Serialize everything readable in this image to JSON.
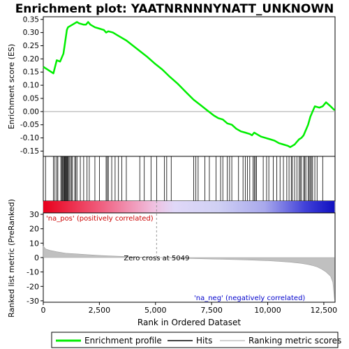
{
  "chart_data": {
    "type": "line",
    "title": "Enrichment plot: YAATNRNNNYNATT_UNKNOWN",
    "colors": {
      "es_line": "#00ee00",
      "hits": "#000000",
      "metric_fill": "#c0c0c0",
      "pos_label": "#cc0000",
      "neg_label": "#0000cc"
    },
    "top_panel": {
      "ylabel": "Enrichment score (ES)",
      "ylim": [
        -0.17,
        0.36
      ],
      "yticks": [
        "0.35",
        "0.30",
        "0.25",
        "0.20",
        "0.15",
        "0.10",
        "0.05",
        "0.00",
        "-0.05",
        "-0.10",
        "-0.15"
      ],
      "ytick_values": [
        0.35,
        0.3,
        0.25,
        0.2,
        0.15,
        0.1,
        0.05,
        0.0,
        -0.05,
        -0.1,
        -0.15
      ],
      "es_curve": {
        "x": [
          0,
          450,
          600,
          750,
          900,
          1000,
          1050,
          1100,
          1200,
          1300,
          1400,
          1500,
          1600,
          1800,
          1900,
          2000,
          2100,
          2300,
          2500,
          2700,
          2800,
          2900,
          3100,
          3300,
          3500,
          3700,
          4000,
          4300,
          4600,
          5000,
          5300,
          5600,
          6000,
          6400,
          6700,
          7000,
          7300,
          7600,
          7800,
          8000,
          8200,
          8400,
          8600,
          8800,
          9000,
          9200,
          9300,
          9400,
          9500,
          9700,
          9900,
          10100,
          10300,
          10500,
          10700,
          10900,
          11000,
          11100,
          11200,
          11300,
          11400,
          11500,
          11600,
          11700,
          11800,
          11900,
          12000,
          12100,
          12300,
          12450,
          12600,
          12800,
          12980
        ],
        "y": [
          0.17,
          0.145,
          0.195,
          0.19,
          0.22,
          0.28,
          0.31,
          0.32,
          0.325,
          0.33,
          0.335,
          0.34,
          0.335,
          0.33,
          0.33,
          0.34,
          0.33,
          0.32,
          0.315,
          0.31,
          0.3,
          0.305,
          0.3,
          0.29,
          0.28,
          0.27,
          0.25,
          0.23,
          0.21,
          0.18,
          0.16,
          0.135,
          0.105,
          0.07,
          0.045,
          0.025,
          0.005,
          -0.015,
          -0.025,
          -0.03,
          -0.045,
          -0.05,
          -0.065,
          -0.075,
          -0.08,
          -0.085,
          -0.09,
          -0.08,
          -0.085,
          -0.095,
          -0.1,
          -0.105,
          -0.11,
          -0.12,
          -0.125,
          -0.13,
          -0.135,
          -0.13,
          -0.125,
          -0.115,
          -0.105,
          -0.1,
          -0.09,
          -0.07,
          -0.05,
          -0.02,
          0.0,
          0.02,
          0.015,
          0.02,
          0.035,
          0.02,
          0.005
        ]
      }
    },
    "hits": {
      "positions": [
        100,
        450,
        520,
        600,
        650,
        780,
        820,
        860,
        900,
        930,
        960,
        990,
        1020,
        1050,
        1080,
        1110,
        1150,
        1200,
        1260,
        1300,
        1400,
        1450,
        1500,
        1650,
        1800,
        1950,
        2050,
        2300,
        2500,
        2800,
        2850,
        2900,
        3050,
        3200,
        3350,
        3500,
        3700,
        4300,
        4500,
        4800,
        5050,
        5400,
        5500,
        5700,
        6700,
        6800,
        6900,
        7200,
        7400,
        7700,
        7900,
        8000,
        8200,
        8300,
        8400,
        8700,
        8900,
        9000,
        9100,
        9200,
        9350,
        9400,
        9450,
        9500,
        9800,
        9950,
        10050,
        10250,
        10400,
        10550,
        10700,
        10850,
        10950,
        11050,
        11100,
        11200,
        11300,
        11400,
        11450,
        11500,
        11600,
        11650,
        11700,
        11800,
        11850,
        11900,
        11950,
        12000,
        12100,
        12200,
        12450
      ]
    },
    "bottom_panel": {
      "xlabel": "Rank in Ordered Dataset",
      "ylabel": "Ranked list metric (PreRanked)",
      "xlim": [
        0,
        13000
      ],
      "ylim": [
        -31,
        31
      ],
      "xticks": [
        "0",
        "2,500",
        "5,000",
        "7,500",
        "10,000",
        "12,500"
      ],
      "xtick_values": [
        0,
        2500,
        5000,
        7500,
        10000,
        12500
      ],
      "yticks": [
        "30",
        "20",
        "10",
        "0",
        "-10",
        "-20",
        "-30"
      ],
      "ytick_values": [
        30,
        20,
        10,
        0,
        -10,
        -20,
        -30
      ],
      "metric_curve": {
        "x": [
          0,
          100,
          300,
          600,
          1000,
          1500,
          2000,
          2500,
          3000,
          3500,
          4000,
          4500,
          5049,
          6000,
          7000,
          8000,
          9000,
          10000,
          10500,
          11000,
          11500,
          11800,
          12000,
          12200,
          12400,
          12600,
          12800,
          12900,
          12980
        ],
        "y": [
          8,
          6,
          5,
          4,
          3,
          2.5,
          2,
          1.5,
          1.1,
          0.8,
          0.5,
          0.3,
          0,
          -0.4,
          -0.8,
          -1.2,
          -1.6,
          -2.2,
          -2.6,
          -3.2,
          -4.0,
          -4.8,
          -5.5,
          -6.5,
          -8,
          -10,
          -13,
          -17,
          -30
        ]
      },
      "zero_cross_label": "Zero cross at 5049",
      "zero_cross_x": 5049,
      "pos_label": "'na_pos' (positively correlated)",
      "neg_label": "'na_neg' (negatively correlated)"
    },
    "legend": {
      "placement": "bottom",
      "entries": [
        "Enrichment profile",
        "Hits",
        "Ranking metric scores"
      ]
    }
  }
}
